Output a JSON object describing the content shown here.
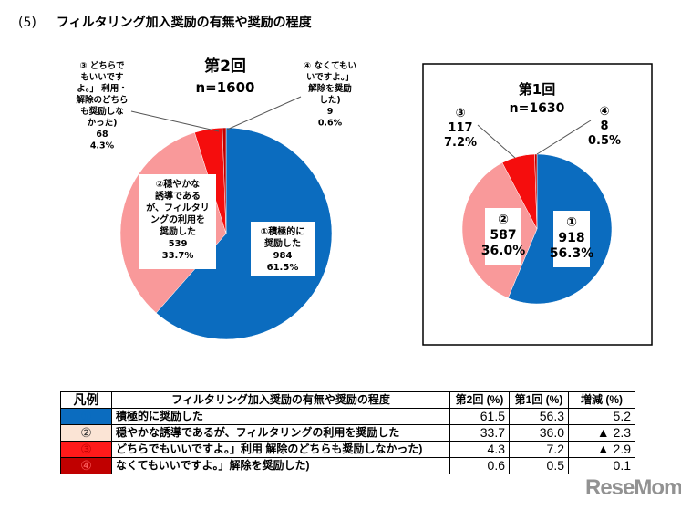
{
  "section": {
    "number": "(5)",
    "title": "フィルタリング加入奨励の有無や奨励の程度"
  },
  "colors": {
    "c1": "#0b6cbf",
    "c2": "#f9999a",
    "c3": "#f50d0d",
    "c4": "#c00000",
    "legend2_bg": "#fbe4d5",
    "legend3_bg": "#ff1a1a",
    "legend4_bg": "#c00000"
  },
  "chart_data": [
    {
      "type": "pie",
      "title": "第2回",
      "subtitle": "n=1600",
      "categories": [
        "①積極的に奨励した",
        "②穏やかな誘導であるが、フィルタリングの利用を奨励した",
        "③どちらでもいいですよ。」利用・解除のどちらも奨励しなかった)",
        "④なくてもいいですよ。」解除を奨励した)"
      ],
      "values": [
        984,
        539,
        68,
        9
      ],
      "percents": [
        61.5,
        33.7,
        4.3,
        0.6
      ],
      "labels": [
        {
          "lines": [
            "①積極的に",
            "奨励した"
          ],
          "count": "984",
          "pct": "61.5%"
        },
        {
          "lines": [
            "②穏やかな",
            "誘導である",
            "が、フィルタリ",
            "ングの利用を",
            "奨励した"
          ],
          "count": "539",
          "pct": "33.7%"
        },
        {
          "lines": [
            "③ どちらで",
            "もいいです",
            "よ。」 利用・",
            "解除のどちら",
            "も奨励しな",
            "かった)"
          ],
          "count": "68",
          "pct": "4.3%"
        },
        {
          "lines": [
            "④ なくてもい",
            "いですよ。」",
            "解除を奨励",
            "した)"
          ],
          "count": "9",
          "pct": "0.6%"
        }
      ]
    },
    {
      "type": "pie",
      "title": "第1回",
      "subtitle": "n=1630",
      "categories": [
        "①",
        "②",
        "③",
        "④"
      ],
      "values": [
        918,
        587,
        117,
        8
      ],
      "percents": [
        56.3,
        36.0,
        7.2,
        0.5
      ],
      "labels": [
        {
          "lines": [
            "①"
          ],
          "count": "918",
          "pct": "56.3%"
        },
        {
          "lines": [
            "②"
          ],
          "count": "587",
          "pct": "36.0%"
        },
        {
          "lines": [
            "③"
          ],
          "count": "117",
          "pct": "7.2%"
        },
        {
          "lines": [
            "④"
          ],
          "count": "8",
          "pct": "0.5%"
        }
      ]
    }
  ],
  "legend_table": {
    "headers": [
      "凡例",
      "フィルタリング加入奨励の有無や奨励の程度",
      "第2回 (%)",
      "第1回 (%)",
      "増減 (%)"
    ],
    "rows": [
      {
        "mark": "①",
        "text": "積極的に奨励した",
        "r2": "61.5",
        "r1": "56.3",
        "diff": "5.2"
      },
      {
        "mark": "②",
        "text": "穏やかな誘導であるが、フィルタリングの利用を奨励した",
        "r2": "33.7",
        "r1": "36.0",
        "diff": "▲ 2.3"
      },
      {
        "mark": "③",
        "text": "どちらでもいいですよ。」利用 解除のどちらも奨励しなかった)",
        "r2": "4.3",
        "r1": "7.2",
        "diff": "▲ 2.9"
      },
      {
        "mark": "④",
        "text": "なくてもいいですよ。」解除を奨励した)",
        "r2": "0.6",
        "r1": "0.5",
        "diff": "0.1"
      }
    ]
  },
  "watermark": "ReseMom"
}
